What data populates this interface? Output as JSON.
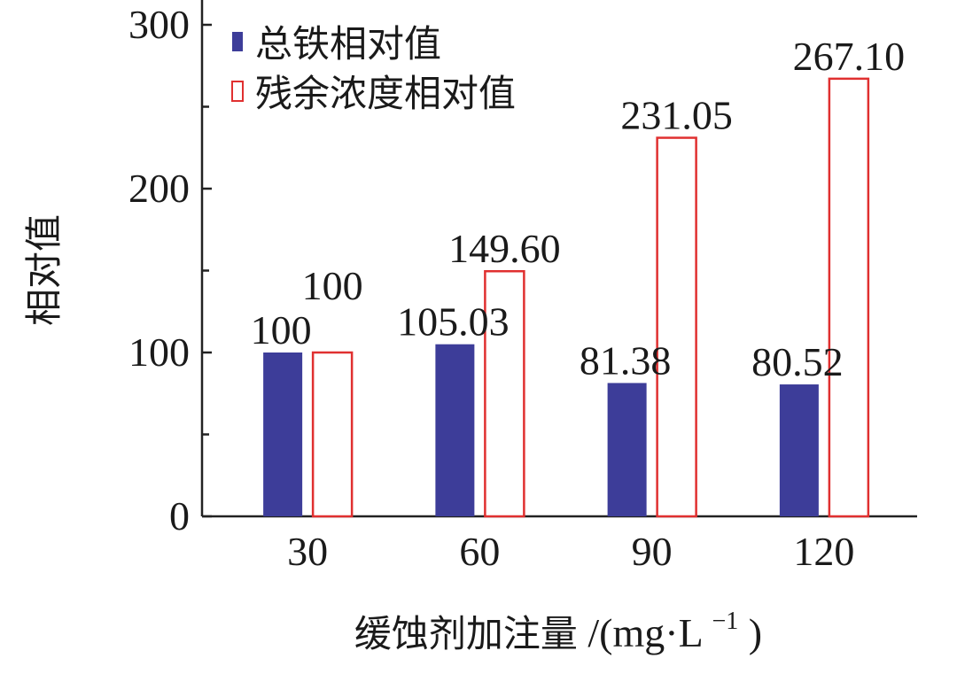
{
  "chart_data": {
    "type": "bar",
    "categories": [
      "30",
      "60",
      "90",
      "120"
    ],
    "series": [
      {
        "name": "总铁相对值",
        "values": [
          100,
          105.03,
          81.38,
          80.52
        ],
        "data_labels": [
          "100",
          "105.03",
          "81.38",
          "80.52"
        ],
        "color": "#3d3d99",
        "style": "filled"
      },
      {
        "name": "残余浓度相对值",
        "values": [
          100,
          149.6,
          231.05,
          267.1
        ],
        "data_labels": [
          "100",
          "149.60",
          "231.05",
          "267.10"
        ],
        "color": "#e03030",
        "style": "outline"
      }
    ],
    "xlabel": "缓蚀剂加注量",
    "xlabel_unit": "/(mg·L",
    "xlabel_unit_exp": "−1",
    "xlabel_unit_close": ")",
    "ylabel": "相对值",
    "ylim": [
      0,
      300
    ],
    "yticks": [
      0,
      100,
      200,
      300
    ],
    "grid": false,
    "legend_position": "top-left"
  }
}
